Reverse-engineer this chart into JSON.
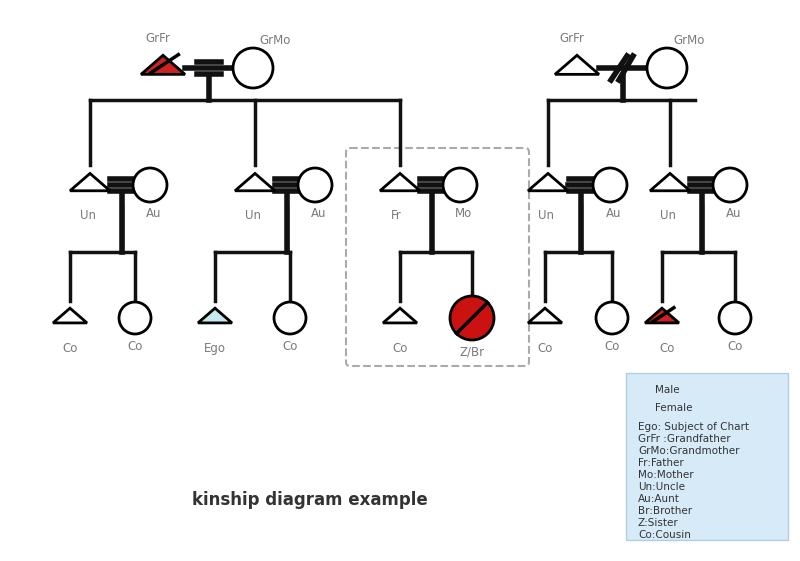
{
  "title": "kinship diagram example",
  "bg": "#ffffff",
  "legend_bg": "#d6eaf8",
  "legend_text": [
    "Male",
    "Female",
    "Ego: Subject of Chart",
    "GrFr :Grandfather",
    "GrMo:Grandmother",
    "Fr:Father",
    "Mo:Mother",
    "Un:Uncle",
    "Au:Aunt",
    "Br:Brother",
    "Z:Sister",
    "Co:Cousin"
  ],
  "label_color": "#7a7a7a",
  "line_color": "#111111",
  "line_lw": 2.5,
  "marry_lw": 4.0
}
